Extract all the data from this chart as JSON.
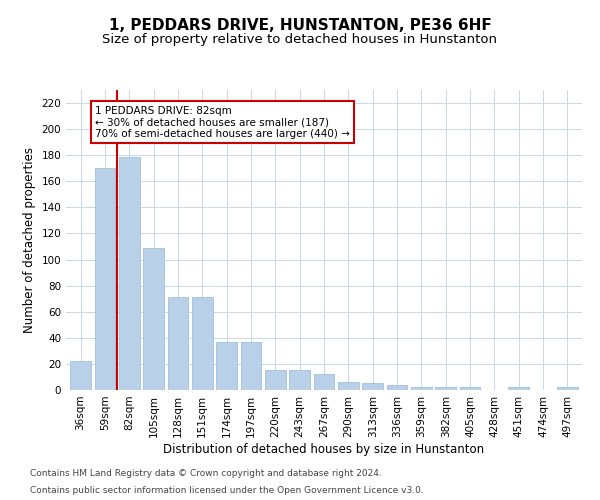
{
  "title": "1, PEDDARS DRIVE, HUNSTANTON, PE36 6HF",
  "subtitle": "Size of property relative to detached houses in Hunstanton",
  "xlabel": "Distribution of detached houses by size in Hunstanton",
  "ylabel": "Number of detached properties",
  "categories": [
    "36sqm",
    "59sqm",
    "82sqm",
    "105sqm",
    "128sqm",
    "151sqm",
    "174sqm",
    "197sqm",
    "220sqm",
    "243sqm",
    "267sqm",
    "290sqm",
    "313sqm",
    "336sqm",
    "359sqm",
    "382sqm",
    "405sqm",
    "428sqm",
    "451sqm",
    "474sqm",
    "497sqm"
  ],
  "values": [
    22,
    170,
    179,
    109,
    71,
    71,
    37,
    37,
    15,
    15,
    12,
    6,
    5,
    4,
    2,
    2,
    2,
    0,
    2,
    0,
    2
  ],
  "bar_color": "#b8d0e8",
  "bar_edge_color": "#9ab8d8",
  "highlight_bar_index": 2,
  "highlight_color": "#cc0000",
  "ylim": [
    0,
    230
  ],
  "yticks": [
    0,
    20,
    40,
    60,
    80,
    100,
    120,
    140,
    160,
    180,
    200,
    220
  ],
  "annotation_text": "1 PEDDARS DRIVE: 82sqm\n← 30% of detached houses are smaller (187)\n70% of semi-detached houses are larger (440) →",
  "annotation_box_color": "#ffffff",
  "annotation_border_color": "#cc0000",
  "footer_line1": "Contains HM Land Registry data © Crown copyright and database right 2024.",
  "footer_line2": "Contains public sector information licensed under the Open Government Licence v3.0.",
  "background_color": "#ffffff",
  "grid_color": "#c8d8e8",
  "title_fontsize": 11,
  "subtitle_fontsize": 9.5,
  "axis_label_fontsize": 8.5,
  "tick_fontsize": 7.5,
  "annotation_fontsize": 7.5,
  "footer_fontsize": 6.5
}
